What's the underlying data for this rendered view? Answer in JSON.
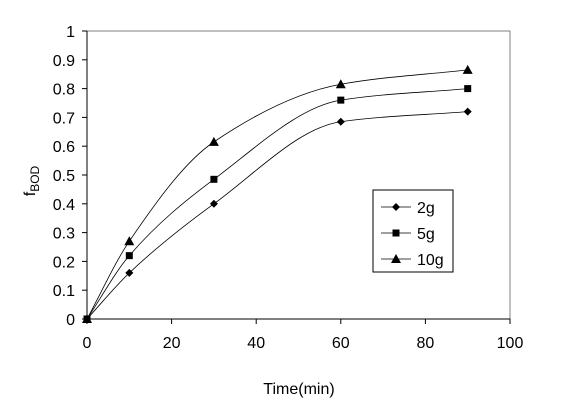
{
  "chart_data": {
    "type": "line",
    "title": "",
    "xlabel": "Time(min)",
    "ylabel": {
      "main": "f",
      "subscript": "BOD"
    },
    "xlim": [
      0,
      100
    ],
    "ylim": [
      0,
      1
    ],
    "xticks": [
      0,
      20,
      40,
      60,
      80,
      100
    ],
    "yticks": [
      0,
      0.1,
      0.2,
      0.3,
      0.4,
      0.5,
      0.6,
      0.7,
      0.8,
      0.9,
      1
    ],
    "grid": false,
    "legend_position": "right-middle",
    "series": [
      {
        "name": "2g",
        "marker": "diamond",
        "color": "#000000",
        "x": [
          0,
          10,
          30,
          60,
          90
        ],
        "y": [
          0,
          0.16,
          0.4,
          0.685,
          0.72
        ]
      },
      {
        "name": "5g",
        "marker": "square",
        "color": "#000000",
        "x": [
          0,
          10,
          30,
          60,
          90
        ],
        "y": [
          0,
          0.22,
          0.485,
          0.76,
          0.8
        ]
      },
      {
        "name": "10g",
        "marker": "triangle",
        "color": "#000000",
        "x": [
          0,
          10,
          30,
          60,
          90
        ],
        "y": [
          0,
          0.27,
          0.615,
          0.815,
          0.865
        ]
      }
    ]
  }
}
